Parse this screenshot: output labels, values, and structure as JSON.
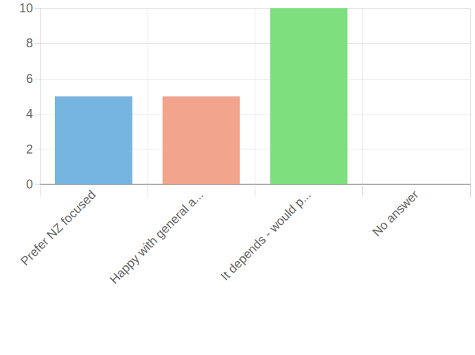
{
  "chart_data": {
    "type": "bar",
    "categories": [
      "Prefer NZ focused",
      "Happy with general a...",
      "It depends - would p...",
      "No answer"
    ],
    "values": [
      5,
      5,
      10,
      0
    ],
    "colors": [
      "#6fb1dd",
      "#f29f87",
      "#76dd77",
      "#c9cbcf"
    ],
    "ylim": [
      0,
      10
    ],
    "yticks": [
      0,
      2,
      4,
      6,
      8,
      10
    ],
    "grid": true
  }
}
